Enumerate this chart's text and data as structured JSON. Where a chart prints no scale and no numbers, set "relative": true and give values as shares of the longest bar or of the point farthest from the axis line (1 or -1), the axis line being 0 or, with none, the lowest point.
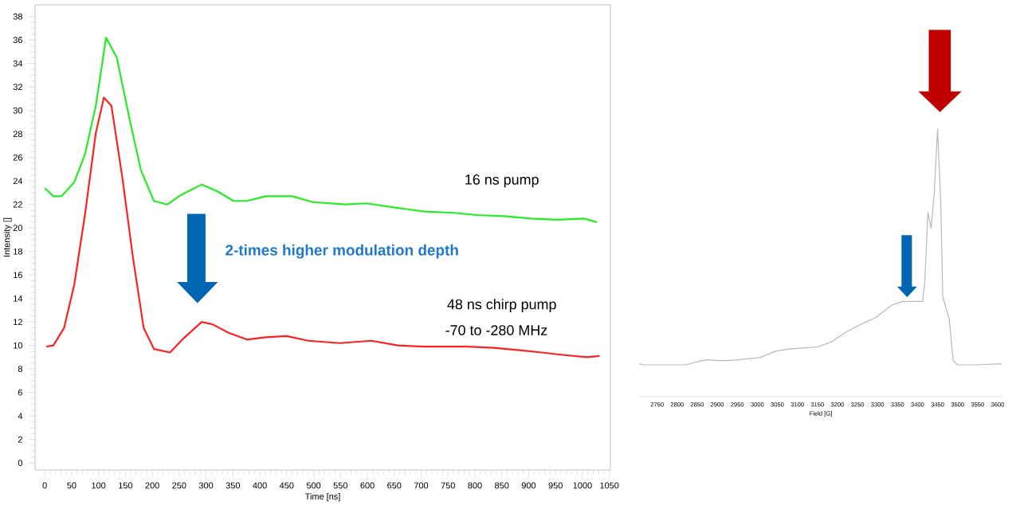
{
  "chart_data": [
    {
      "type": "line",
      "xlabel": "Time [ns]",
      "ylabel": "Intensity []",
      "xlim": [
        -18,
        1052
      ],
      "ylim": [
        -0.6,
        39
      ],
      "xticks": [
        0,
        50,
        100,
        150,
        200,
        250,
        300,
        350,
        400,
        450,
        500,
        550,
        600,
        650,
        700,
        750,
        800,
        850,
        900,
        950,
        1000,
        1050
      ],
      "yticks": [
        0,
        2,
        4,
        6,
        8,
        10,
        12,
        14,
        16,
        18,
        20,
        22,
        24,
        26,
        28,
        30,
        32,
        34,
        36,
        38
      ],
      "series": [
        {
          "name": "16 ns pump",
          "color": "#22ee22",
          "x": [
            0,
            16,
            31,
            55,
            75,
            95,
            114,
            134,
            159,
            179,
            203,
            228,
            253,
            292,
            322,
            351,
            376,
            411,
            460,
            499,
            559,
            598,
            657,
            707,
            756,
            805,
            855,
            904,
            953,
            1003,
            1027
          ],
          "values": [
            23.4,
            22.7,
            22.7,
            23.9,
            26.3,
            30.4,
            36.2,
            34.5,
            29.0,
            24.9,
            22.3,
            22.0,
            22.8,
            23.7,
            23.1,
            22.3,
            22.3,
            22.7,
            22.7,
            22.2,
            22.0,
            22.1,
            21.7,
            21.4,
            21.3,
            21.1,
            21.0,
            20.8,
            20.7,
            20.8,
            20.5
          ]
        },
        {
          "name": "48 ns chirp pump",
          "color": "#ff2020",
          "x": [
            3,
            16,
            36,
            55,
            75,
            95,
            110,
            124,
            144,
            164,
            184,
            203,
            233,
            258,
            292,
            312,
            341,
            376,
            411,
            450,
            490,
            549,
            607,
            657,
            707,
            785,
            835,
            883,
            924,
            963,
            1008,
            1032
          ],
          "values": [
            9.9,
            10.0,
            11.5,
            15.2,
            21.2,
            28.1,
            31.1,
            30.4,
            24.4,
            17.5,
            11.5,
            9.7,
            9.4,
            10.6,
            12.0,
            11.8,
            11.1,
            10.5,
            10.7,
            10.8,
            10.4,
            10.2,
            10.4,
            10.0,
            9.9,
            9.9,
            9.8,
            9.6,
            9.4,
            9.2,
            9.0,
            9.1
          ]
        }
      ],
      "annotations": [
        "**2-times higher modulation depth**",
        "-70 to -280 MHz"
      ]
    },
    {
      "type": "line",
      "xlabel": "Field [G]",
      "relative": true,
      "xlim": [
        2705,
        3612
      ],
      "xticks": [
        2750,
        2800,
        2850,
        2900,
        2950,
        3000,
        3050,
        3100,
        3150,
        3200,
        3250,
        3300,
        3350,
        3400,
        3450,
        3500,
        3550,
        3600
      ],
      "series": [
        {
          "color": "#b8b8b8",
          "x": [
            2705,
            2716,
            2821,
            2848,
            2874,
            2914,
            2953,
            3006,
            3046,
            3079,
            3151,
            3184,
            3217,
            3257,
            3296,
            3336,
            3362,
            3389,
            3413,
            3418,
            3426,
            3434,
            3442,
            3450,
            3458,
            3463,
            3479,
            3489,
            3501,
            3547,
            3610
          ],
          "values": [
            0.123,
            0.119,
            0.119,
            0.13,
            0.138,
            0.134,
            0.138,
            0.146,
            0.17,
            0.178,
            0.186,
            0.204,
            0.237,
            0.269,
            0.296,
            0.342,
            0.356,
            0.356,
            0.356,
            0.431,
            0.688,
            0.628,
            0.767,
            1,
            0.727,
            0.372,
            0.292,
            0.134,
            0.119,
            0.119,
            0.123
          ]
        }
      ]
    }
  ]
}
